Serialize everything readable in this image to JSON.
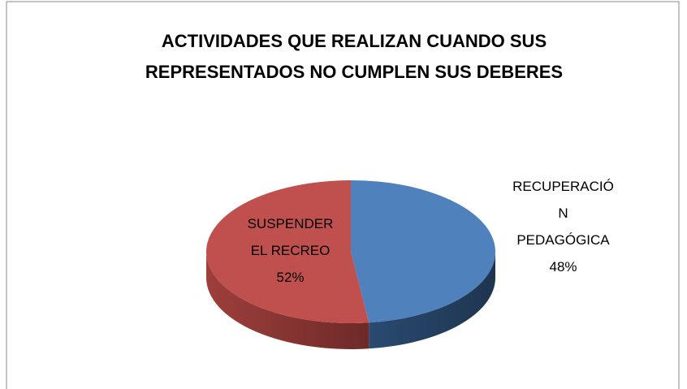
{
  "chart_data": {
    "type": "pie3d",
    "title": [
      "ACTIVIDADES QUE REALIZAN CUANDO SUS",
      "REPRESENTADOS NO CUMPLEN  SUS DEBERES"
    ],
    "categories": [
      "RECUPERACIÓN PEDAGÓGICA",
      "SUSPENDER EL RECREO"
    ],
    "values": [
      48,
      52
    ],
    "value_labels": [
      "48%",
      "52%"
    ],
    "colors": [
      "#4f81bd",
      "#c0504d"
    ]
  }
}
